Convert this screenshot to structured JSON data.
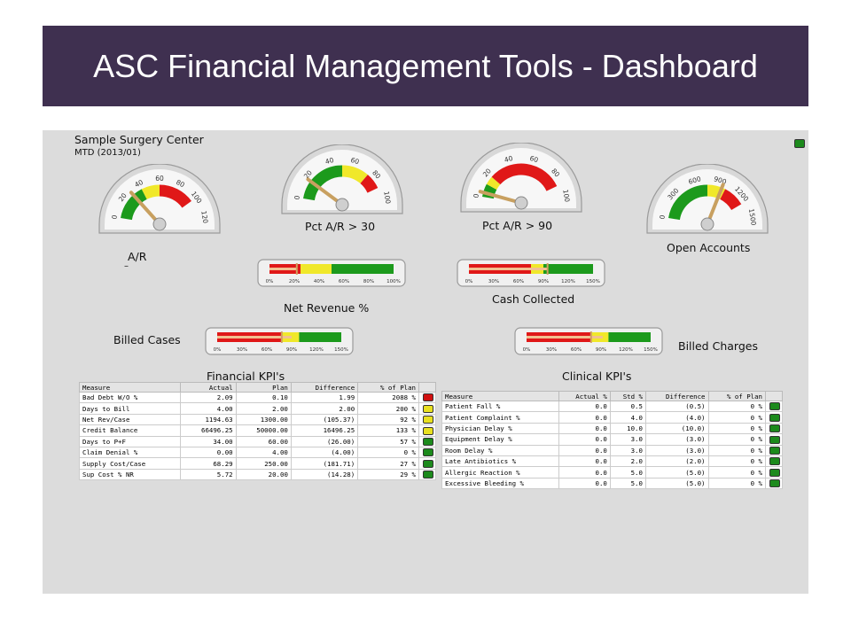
{
  "slide": {
    "title": "ASC Financial Management Tools - Dashboard"
  },
  "dashboard": {
    "center_name": "Sample Surgery Center",
    "period": "MTD (2013/01)",
    "status_indicator_color": "green",
    "gauges": [
      {
        "label": "A/R",
        "ticks": [
          "0",
          "20",
          "40",
          "60",
          "80",
          "100",
          "120"
        ],
        "value": 29,
        "max": 120,
        "zones": [
          {
            "from": 0,
            "to": 40,
            "color": "#1c9a1c"
          },
          {
            "from": 40,
            "to": 60,
            "color": "#f0e82a"
          },
          {
            "from": 60,
            "to": 100,
            "color": "#e01818"
          }
        ]
      },
      {
        "label": "Pct A/R > 30",
        "ticks": [
          "0",
          "20",
          "40",
          "60",
          "80",
          "100"
        ],
        "value": 17,
        "max": 100,
        "zones": [
          {
            "from": 0,
            "to": 50,
            "color": "#1c9a1c"
          },
          {
            "from": 50,
            "to": 75,
            "color": "#f0e82a"
          },
          {
            "from": 75,
            "to": 90,
            "color": "#e01818"
          }
        ]
      },
      {
        "label": "Pct A/R > 90",
        "ticks": [
          "0",
          "20",
          "40",
          "60",
          "80",
          "100"
        ],
        "value": 4,
        "max": 100,
        "zones": [
          {
            "from": 0,
            "to": 12,
            "color": "#1c9a1c"
          },
          {
            "from": 12,
            "to": 20,
            "color": "#f0e82a"
          },
          {
            "from": 20,
            "to": 90,
            "color": "#e01818"
          }
        ]
      },
      {
        "label": "Open Accounts",
        "ticks": [
          "0",
          "300",
          "600",
          "900",
          "1200",
          "1500"
        ],
        "value": 950,
        "max": 1500,
        "zones": [
          {
            "from": 0,
            "to": 750,
            "color": "#1c9a1c"
          },
          {
            "from": 750,
            "to": 1000,
            "color": "#f0e82a"
          },
          {
            "from": 1000,
            "to": 1300,
            "color": "#e01818"
          }
        ]
      }
    ],
    "ar_value": "–",
    "bars": [
      {
        "label": "Net Revenue %",
        "ticks": [
          "0%",
          "20%",
          "40%",
          "60%",
          "80%",
          "100%"
        ],
        "scale_max": 100,
        "zones": [
          {
            "to": 25,
            "color": "#e01818"
          },
          {
            "to": 50,
            "color": "#f0e82a"
          },
          {
            "to": 100,
            "color": "#1c9a1c"
          }
        ],
        "actual": 22,
        "target": 22
      },
      {
        "label": "Cash Collected",
        "ticks": [
          "0%",
          "30%",
          "60%",
          "90%",
          "120%",
          "150%"
        ],
        "scale_max": 150,
        "zones": [
          {
            "to": 75,
            "color": "#e01818"
          },
          {
            "to": 90,
            "color": "#f0e82a"
          },
          {
            "to": 150,
            "color": "#1c9a1c"
          }
        ],
        "actual": 95,
        "target": 95
      },
      {
        "label": "Billed Cases",
        "ticks": [
          "0%",
          "30%",
          "60%",
          "90%",
          "120%",
          "150%"
        ],
        "scale_max": 150,
        "zones": [
          {
            "to": 78,
            "color": "#e01818"
          },
          {
            "to": 99,
            "color": "#f0e82a"
          },
          {
            "to": 150,
            "color": "#1c9a1c"
          }
        ],
        "actual": 90,
        "target": 78
      },
      {
        "label": "Billed Charges",
        "ticks": [
          "0%",
          "30%",
          "60%",
          "90%",
          "120%",
          "150%"
        ],
        "scale_max": 150,
        "zones": [
          {
            "to": 78,
            "color": "#e01818"
          },
          {
            "to": 99,
            "color": "#f0e82a"
          },
          {
            "to": 150,
            "color": "#1c9a1c"
          }
        ],
        "actual": 92,
        "target": 78
      }
    ],
    "financial_kpis": {
      "title": "Financial KPI's",
      "columns": [
        "Measure",
        "Actual",
        "Plan",
        "Difference",
        "% of Plan"
      ],
      "rows": [
        {
          "measure": "Bad Debt W/O %",
          "actual": "2.09",
          "plan": "0.10",
          "difference": "1.99",
          "pct": "2088 %",
          "status": "red"
        },
        {
          "measure": "Days to Bill",
          "actual": "4.00",
          "plan": "2.00",
          "difference": "2.00",
          "pct": "200 %",
          "status": "yellow"
        },
        {
          "measure": "Net Rev/Case",
          "actual": "1194.63",
          "plan": "1300.00",
          "difference": "(105.37)",
          "pct": "92 %",
          "status": "yellow"
        },
        {
          "measure": "Credit Balance",
          "actual": "66496.25",
          "plan": "50000.00",
          "difference": "16496.25",
          "pct": "133 %",
          "status": "yellow"
        },
        {
          "measure": "Days to P+F",
          "actual": "34.00",
          "plan": "60.00",
          "difference": "(26.00)",
          "pct": "57 %",
          "status": "green"
        },
        {
          "measure": "Claim Denial %",
          "actual": "0.00",
          "plan": "4.00",
          "difference": "(4.00)",
          "pct": "0 %",
          "status": "green"
        },
        {
          "measure": "Supply Cost/Case",
          "actual": "68.29",
          "plan": "250.00",
          "difference": "(181.71)",
          "pct": "27 %",
          "status": "green"
        },
        {
          "measure": "Sup Cost % NR",
          "actual": "5.72",
          "plan": "20.00",
          "difference": "(14.28)",
          "pct": "29 %",
          "status": "green"
        }
      ]
    },
    "clinical_kpis": {
      "title": "Clinical KPI's",
      "columns": [
        "Measure",
        "Actual %",
        "Std %",
        "Difference",
        "% of Plan"
      ],
      "rows": [
        {
          "measure": "Patient Fall %",
          "actual": "0.0",
          "std": "0.5",
          "difference": "(0.5)",
          "pct": "0 %",
          "status": "green"
        },
        {
          "measure": "Patient Complaint %",
          "actual": "0.0",
          "std": "4.0",
          "difference": "(4.0)",
          "pct": "0 %",
          "status": "green"
        },
        {
          "measure": "Physician Delay %",
          "actual": "0.0",
          "std": "10.0",
          "difference": "(10.0)",
          "pct": "0 %",
          "status": "green"
        },
        {
          "measure": "Equipment Delay %",
          "actual": "0.0",
          "std": "3.0",
          "difference": "(3.0)",
          "pct": "0 %",
          "status": "green"
        },
        {
          "measure": "Room Delay %",
          "actual": "0.0",
          "std": "3.0",
          "difference": "(3.0)",
          "pct": "0 %",
          "status": "green"
        },
        {
          "measure": "Late Antibiotics %",
          "actual": "0.0",
          "std": "2.0",
          "difference": "(2.0)",
          "pct": "0 %",
          "status": "green"
        },
        {
          "measure": "Allergic Reaction %",
          "actual": "0.0",
          "std": "5.0",
          "difference": "(5.0)",
          "pct": "0 %",
          "status": "green"
        },
        {
          "measure": "Excessive Bleeding %",
          "actual": "0.0",
          "std": "5.0",
          "difference": "(5.0)",
          "pct": "0 %",
          "status": "green"
        }
      ]
    }
  }
}
